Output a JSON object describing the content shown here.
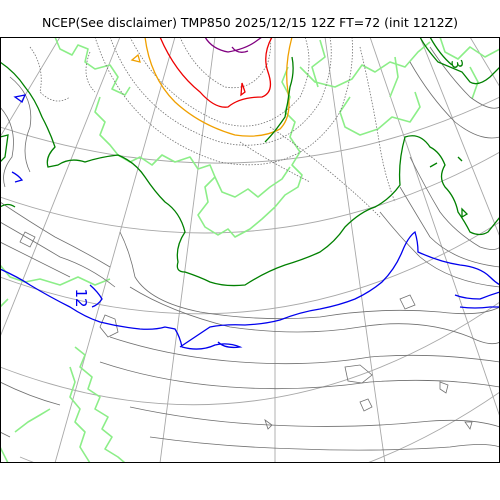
{
  "title": "NCEP(See disclaimer) TMP850 2025/12/15 12Z FT=72 (init 1212Z)",
  "contour_labels": {
    "left": "12",
    "top_right": "3"
  },
  "colors": {
    "frame": "#000000",
    "graticule": "#a8a8a8",
    "coastline": "#8cee88",
    "isotherm_major": "#008000",
    "isotherm_zero": "#008000",
    "isotherm_blue": "#0000ee",
    "isotherm_orange": "#f0a000",
    "isotherm_red": "#ee0000",
    "isotherm_purple": "#800080",
    "isotherm_minor": "#707070"
  }
}
